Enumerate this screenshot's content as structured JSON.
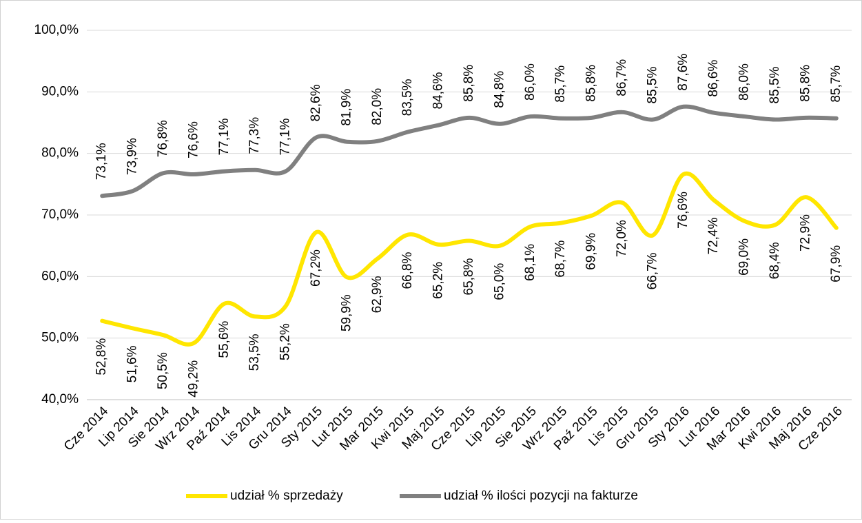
{
  "chart_data": {
    "type": "line",
    "categories": [
      "Cze 2014",
      "Lip 2014",
      "Sie 2014",
      "Wrz 2014",
      "Paź 2014",
      "Lis 2014",
      "Gru 2014",
      "Sty 2015",
      "Lut 2015",
      "Mar 2015",
      "Kwi 2015",
      "Maj 2015",
      "Cze 2015",
      "Lip 2015",
      "Sie 2015",
      "Wrz 2015",
      "Paź 2015",
      "Lis 2015",
      "Gru 2015",
      "Sty 2016",
      "Lut 2016",
      "Mar 2016",
      "Kwi 2016",
      "Maj 2016",
      "Cze 2016"
    ],
    "series": [
      {
        "name": "udział % sprzedaży",
        "color": "#ffe600",
        "values": [
          52.8,
          51.6,
          50.5,
          49.2,
          55.6,
          53.5,
          55.2,
          67.2,
          59.9,
          62.9,
          66.8,
          65.2,
          65.8,
          65.0,
          68.1,
          68.7,
          69.9,
          72.0,
          66.7,
          76.6,
          72.4,
          69.0,
          68.4,
          72.9,
          67.9
        ],
        "value_labels": [
          "52,8%",
          "51,6%",
          "50,5%",
          "49,2%",
          "55,6%",
          "53,5%",
          "55,2%",
          "67,2%",
          "59,9%",
          "62,9%",
          "66,8%",
          "65,2%",
          "65,8%",
          "65,0%",
          "68,1%",
          "68,7%",
          "69,9%",
          "72,0%",
          "66,7%",
          "76,6%",
          "72,4%",
          "69,0%",
          "68,4%",
          "72,9%",
          "67,9%"
        ]
      },
      {
        "name": "udział % ilości pozycji na fakturze",
        "color": "#808080",
        "values": [
          73.1,
          73.9,
          76.8,
          76.6,
          77.1,
          77.3,
          77.1,
          82.6,
          81.9,
          82.0,
          83.5,
          84.6,
          85.8,
          84.8,
          86.0,
          85.7,
          85.8,
          86.7,
          85.5,
          87.6,
          86.6,
          86.0,
          85.5,
          85.8,
          85.7
        ],
        "value_labels": [
          "73,1%",
          "73,9%",
          "76,8%",
          "76,6%",
          "77,1%",
          "77,3%",
          "77,1%",
          "82,6%",
          "81,9%",
          "82,0%",
          "83,5%",
          "84,6%",
          "85,8%",
          "84,8%",
          "86,0%",
          "85,7%",
          "85,8%",
          "86,7%",
          "85,5%",
          "87,6%",
          "86,6%",
          "86,0%",
          "85,5%",
          "85,8%",
          "85,7%"
        ]
      }
    ],
    "ylim": [
      40,
      100
    ],
    "yticks": [
      {
        "value": 40,
        "label": "40,0%"
      },
      {
        "value": 50,
        "label": "50,0%"
      },
      {
        "value": 60,
        "label": "60,0%"
      },
      {
        "value": 70,
        "label": "70,0%"
      },
      {
        "value": 80,
        "label": "80,0%"
      },
      {
        "value": 90,
        "label": "90,0%"
      },
      {
        "value": 100,
        "label": "100,0%"
      }
    ],
    "grid": true,
    "legend": "bottom"
  }
}
